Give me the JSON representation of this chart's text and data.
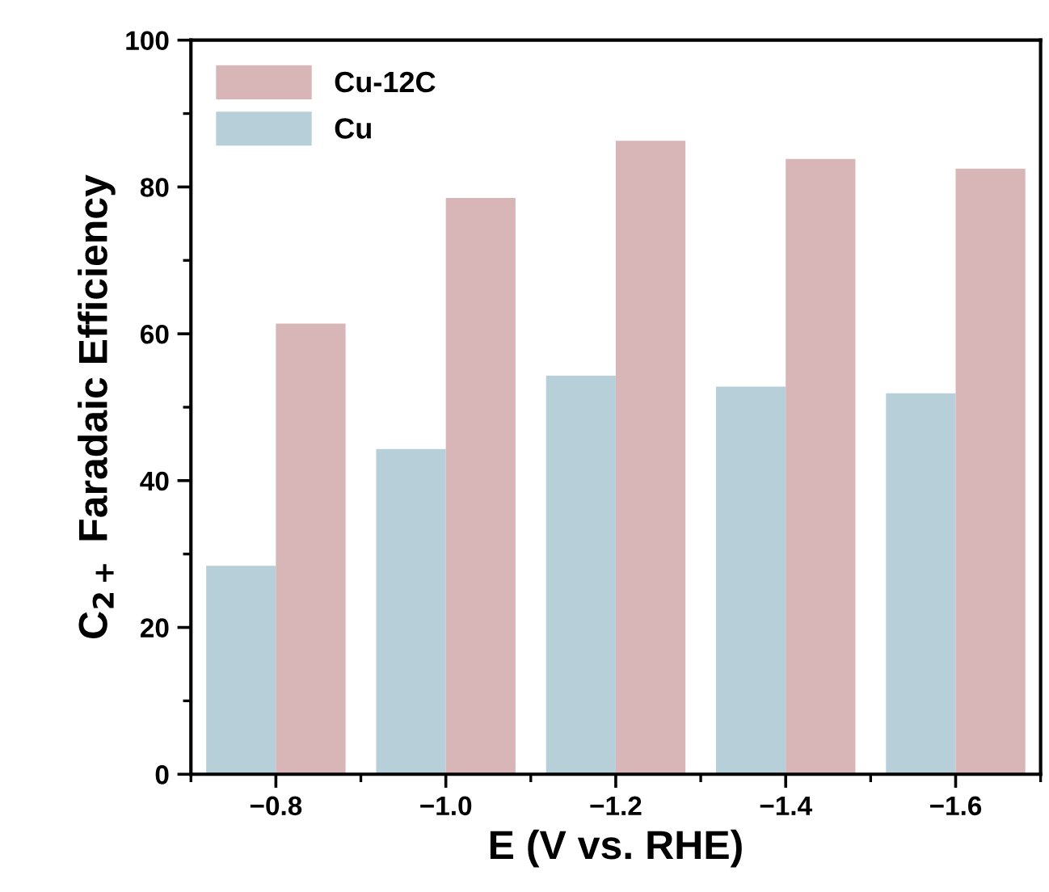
{
  "chart_data": {
    "type": "bar",
    "xlabel": "E (V vs. RHE)",
    "ylabel": "C$_{2+}$ Faradaic Efficiency",
    "categories": [
      "−0.8",
      "−1.0",
      "−1.2",
      "−1.4",
      "−1.6"
    ],
    "series": [
      {
        "name": "Cu",
        "color": "#b7cfd9",
        "values": [
          28.4,
          44.3,
          54.3,
          52.8,
          51.9
        ]
      },
      {
        "name": "Cu-12C",
        "color": "#d8b5b7",
        "values": [
          61.4,
          78.5,
          86.3,
          83.8,
          82.5
        ]
      }
    ],
    "ylim": [
      0,
      100
    ],
    "yticks": [
      0,
      20,
      40,
      60,
      80,
      100
    ],
    "legend": "top left",
    "grid": false
  }
}
